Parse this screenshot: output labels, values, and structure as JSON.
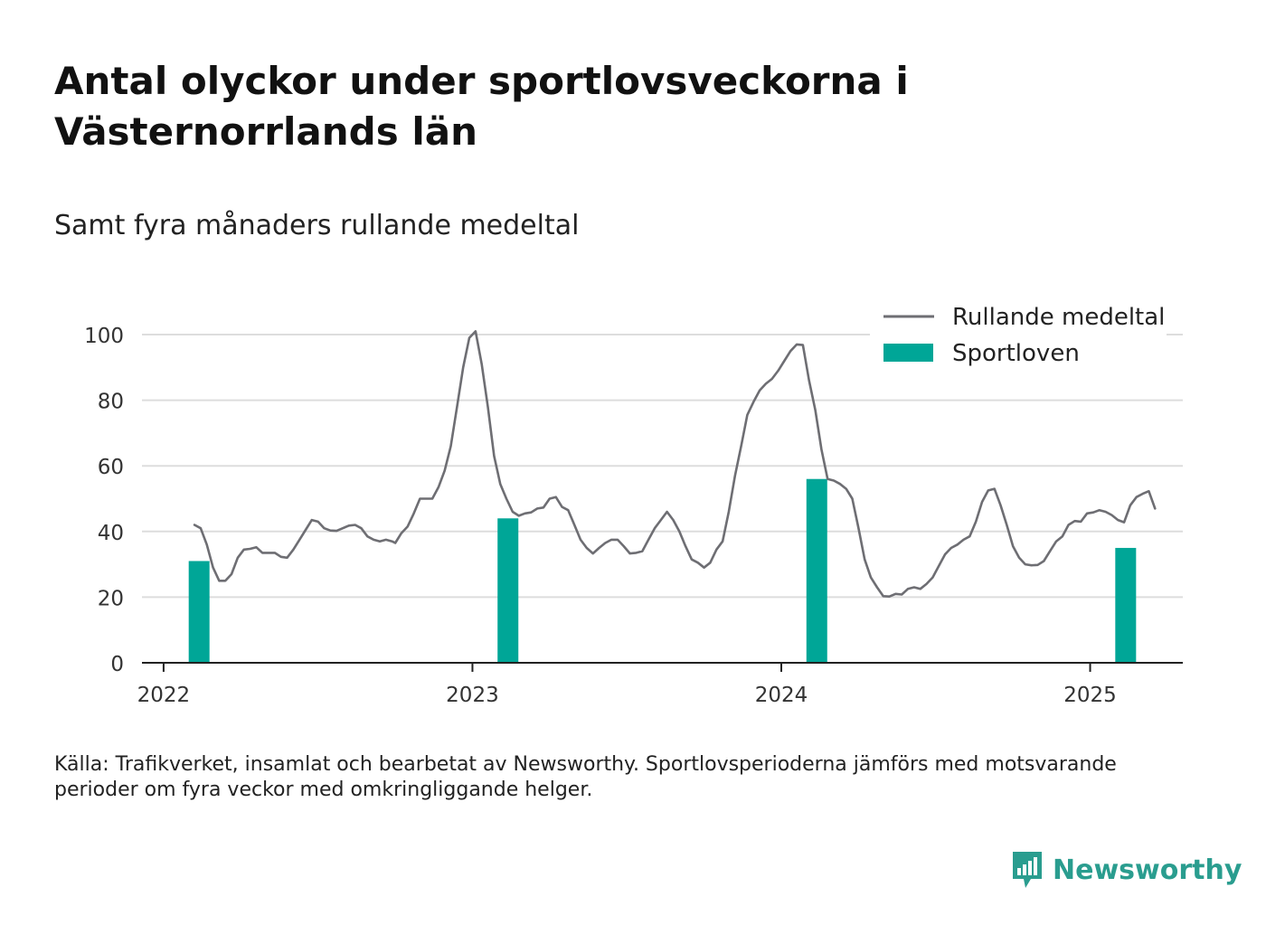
{
  "title": "Antal olyckor under sportlovsveckorna i Västernorrlands län",
  "subtitle": "Samt fyra månaders rullande medeltal",
  "caption": "Källa: Trafikverket, insamlat och bearbetat av Newsworthy. Sportlovsperioderna jämförs med motsvarande perioder om fyra veckor med omkringliggande helger.",
  "brand": {
    "name": "Newsworthy",
    "logo_icon": "newsworthy-logo-icon"
  },
  "colors": {
    "line": "#6e6e73",
    "bar": "#00a697",
    "grid": "#dddddd",
    "axis": "#222222",
    "brand": "#2a9d8f"
  },
  "chart_data": {
    "type": "bar+line",
    "title": "Antal olyckor under sportlovsveckorna i Västernorrlands län",
    "subtitle": "Samt fyra månaders rullande medeltal",
    "x_ticks": [
      2022,
      2023,
      2024,
      2025
    ],
    "y_ticks": [
      0,
      20,
      40,
      60,
      80,
      100
    ],
    "ylim": [
      0,
      100
    ],
    "xlim": [
      2021.93,
      2025.3
    ],
    "grid": "horizontal",
    "legend": {
      "position": "top-right",
      "entries": [
        "Rullande medeltal",
        "Sportloven"
      ]
    },
    "series": [
      {
        "name": "Rullande medeltal",
        "kind": "line",
        "points": [
          [
            2022.1,
            42
          ],
          [
            2022.12,
            41
          ],
          [
            2022.14,
            36
          ],
          [
            2022.16,
            29
          ],
          [
            2022.18,
            25
          ],
          [
            2022.2,
            25
          ],
          [
            2022.22,
            27
          ],
          [
            2022.24,
            32
          ],
          [
            2022.26,
            34.5
          ],
          [
            2022.28,
            34.7
          ],
          [
            2022.3,
            35.2
          ],
          [
            2022.32,
            33.5
          ],
          [
            2022.34,
            33.5
          ],
          [
            2022.36,
            33.5
          ],
          [
            2022.38,
            32.3
          ],
          [
            2022.4,
            32
          ],
          [
            2022.42,
            34.5
          ],
          [
            2022.44,
            37.5
          ],
          [
            2022.46,
            40.5
          ],
          [
            2022.48,
            43.5
          ],
          [
            2022.5,
            43
          ],
          [
            2022.52,
            41
          ],
          [
            2022.54,
            40.3
          ],
          [
            2022.56,
            40.2
          ],
          [
            2022.58,
            41
          ],
          [
            2022.6,
            41.8
          ],
          [
            2022.62,
            42
          ],
          [
            2022.64,
            41
          ],
          [
            2022.66,
            38.5
          ],
          [
            2022.68,
            37.5
          ],
          [
            2022.7,
            37
          ],
          [
            2022.72,
            37.5
          ],
          [
            2022.74,
            37
          ],
          [
            2022.75,
            36.5
          ],
          [
            2022.77,
            39.5
          ],
          [
            2022.79,
            41.5
          ],
          [
            2022.81,
            45.5
          ],
          [
            2022.83,
            50
          ],
          [
            2022.85,
            50
          ],
          [
            2022.87,
            50
          ],
          [
            2022.89,
            53.5
          ],
          [
            2022.91,
            58.5
          ],
          [
            2022.93,
            66
          ],
          [
            2022.95,
            78
          ],
          [
            2022.97,
            90
          ],
          [
            2022.99,
            99
          ],
          [
            2023.01,
            101
          ],
          [
            2023.03,
            91
          ],
          [
            2023.05,
            78
          ],
          [
            2023.07,
            63
          ],
          [
            2023.09,
            54.5
          ],
          [
            2023.11,
            50
          ],
          [
            2023.13,
            46
          ],
          [
            2023.15,
            44.8
          ],
          [
            2023.17,
            45.5
          ],
          [
            2023.19,
            45.8
          ],
          [
            2023.21,
            47
          ],
          [
            2023.23,
            47.3
          ],
          [
            2023.25,
            50
          ],
          [
            2023.27,
            50.5
          ],
          [
            2023.29,
            47.5
          ],
          [
            2023.31,
            46.5
          ],
          [
            2023.33,
            42
          ],
          [
            2023.35,
            37.5
          ],
          [
            2023.37,
            35
          ],
          [
            2023.39,
            33.3
          ],
          [
            2023.41,
            35
          ],
          [
            2023.43,
            36.5
          ],
          [
            2023.45,
            37.5
          ],
          [
            2023.47,
            37.5
          ],
          [
            2023.49,
            35.5
          ],
          [
            2023.51,
            33.3
          ],
          [
            2023.53,
            33.5
          ],
          [
            2023.55,
            34
          ],
          [
            2023.57,
            37.5
          ],
          [
            2023.59,
            41
          ],
          [
            2023.61,
            43.5
          ],
          [
            2023.63,
            46
          ],
          [
            2023.65,
            43.5
          ],
          [
            2023.67,
            40
          ],
          [
            2023.69,
            35.5
          ],
          [
            2023.71,
            31.5
          ],
          [
            2023.73,
            30.5
          ],
          [
            2023.75,
            29
          ],
          [
            2023.77,
            30.5
          ],
          [
            2023.79,
            34.5
          ],
          [
            2023.81,
            37
          ],
          [
            2023.83,
            46
          ],
          [
            2023.85,
            57
          ],
          [
            2023.87,
            66
          ],
          [
            2023.89,
            75.5
          ],
          [
            2023.91,
            79.5
          ],
          [
            2023.93,
            83
          ],
          [
            2023.95,
            85
          ],
          [
            2023.97,
            86.5
          ],
          [
            2023.99,
            89
          ],
          [
            2024.01,
            92
          ],
          [
            2024.03,
            95
          ],
          [
            2024.05,
            97
          ],
          [
            2024.07,
            96.8
          ],
          [
            2024.09,
            86
          ],
          [
            2024.11,
            77
          ],
          [
            2024.13,
            65
          ],
          [
            2024.15,
            56
          ],
          [
            2024.17,
            55.5
          ],
          [
            2024.19,
            54.5
          ],
          [
            2024.21,
            53
          ],
          [
            2024.23,
            50
          ],
          [
            2024.25,
            41
          ],
          [
            2024.27,
            31.5
          ],
          [
            2024.29,
            26
          ],
          [
            2024.31,
            23
          ],
          [
            2024.33,
            20.3
          ],
          [
            2024.35,
            20.2
          ],
          [
            2024.37,
            21
          ],
          [
            2024.39,
            20.8
          ],
          [
            2024.41,
            22.5
          ],
          [
            2024.43,
            23
          ],
          [
            2024.45,
            22.5
          ],
          [
            2024.47,
            24
          ],
          [
            2024.49,
            26
          ],
          [
            2024.51,
            29.5
          ],
          [
            2024.53,
            33
          ],
          [
            2024.55,
            35
          ],
          [
            2024.57,
            36
          ],
          [
            2024.59,
            37.5
          ],
          [
            2024.61,
            38.5
          ],
          [
            2024.63,
            43
          ],
          [
            2024.65,
            49
          ],
          [
            2024.67,
            52.5
          ],
          [
            2024.69,
            53
          ],
          [
            2024.71,
            48
          ],
          [
            2024.73,
            42
          ],
          [
            2024.75,
            35.5
          ],
          [
            2024.77,
            32
          ],
          [
            2024.79,
            30
          ],
          [
            2024.81,
            29.7
          ],
          [
            2024.83,
            29.8
          ],
          [
            2024.85,
            31
          ],
          [
            2024.87,
            34
          ],
          [
            2024.89,
            37
          ],
          [
            2024.91,
            38.5
          ],
          [
            2024.93,
            42
          ],
          [
            2024.95,
            43.2
          ],
          [
            2024.97,
            43
          ],
          [
            2024.99,
            45.5
          ],
          [
            2025.01,
            45.8
          ],
          [
            2025.03,
            46.5
          ],
          [
            2025.05,
            46
          ],
          [
            2025.07,
            45
          ],
          [
            2025.09,
            43.5
          ],
          [
            2025.11,
            42.8
          ],
          [
            2025.13,
            48
          ],
          [
            2025.15,
            50.5
          ],
          [
            2025.17,
            51.5
          ],
          [
            2025.19,
            52.3
          ],
          [
            2025.21,
            47
          ]
        ]
      },
      {
        "name": "Sportloven",
        "kind": "bar",
        "points": [
          [
            2022.115,
            31
          ],
          [
            2023.115,
            44
          ],
          [
            2024.115,
            56
          ],
          [
            2025.115,
            35
          ]
        ]
      }
    ]
  }
}
